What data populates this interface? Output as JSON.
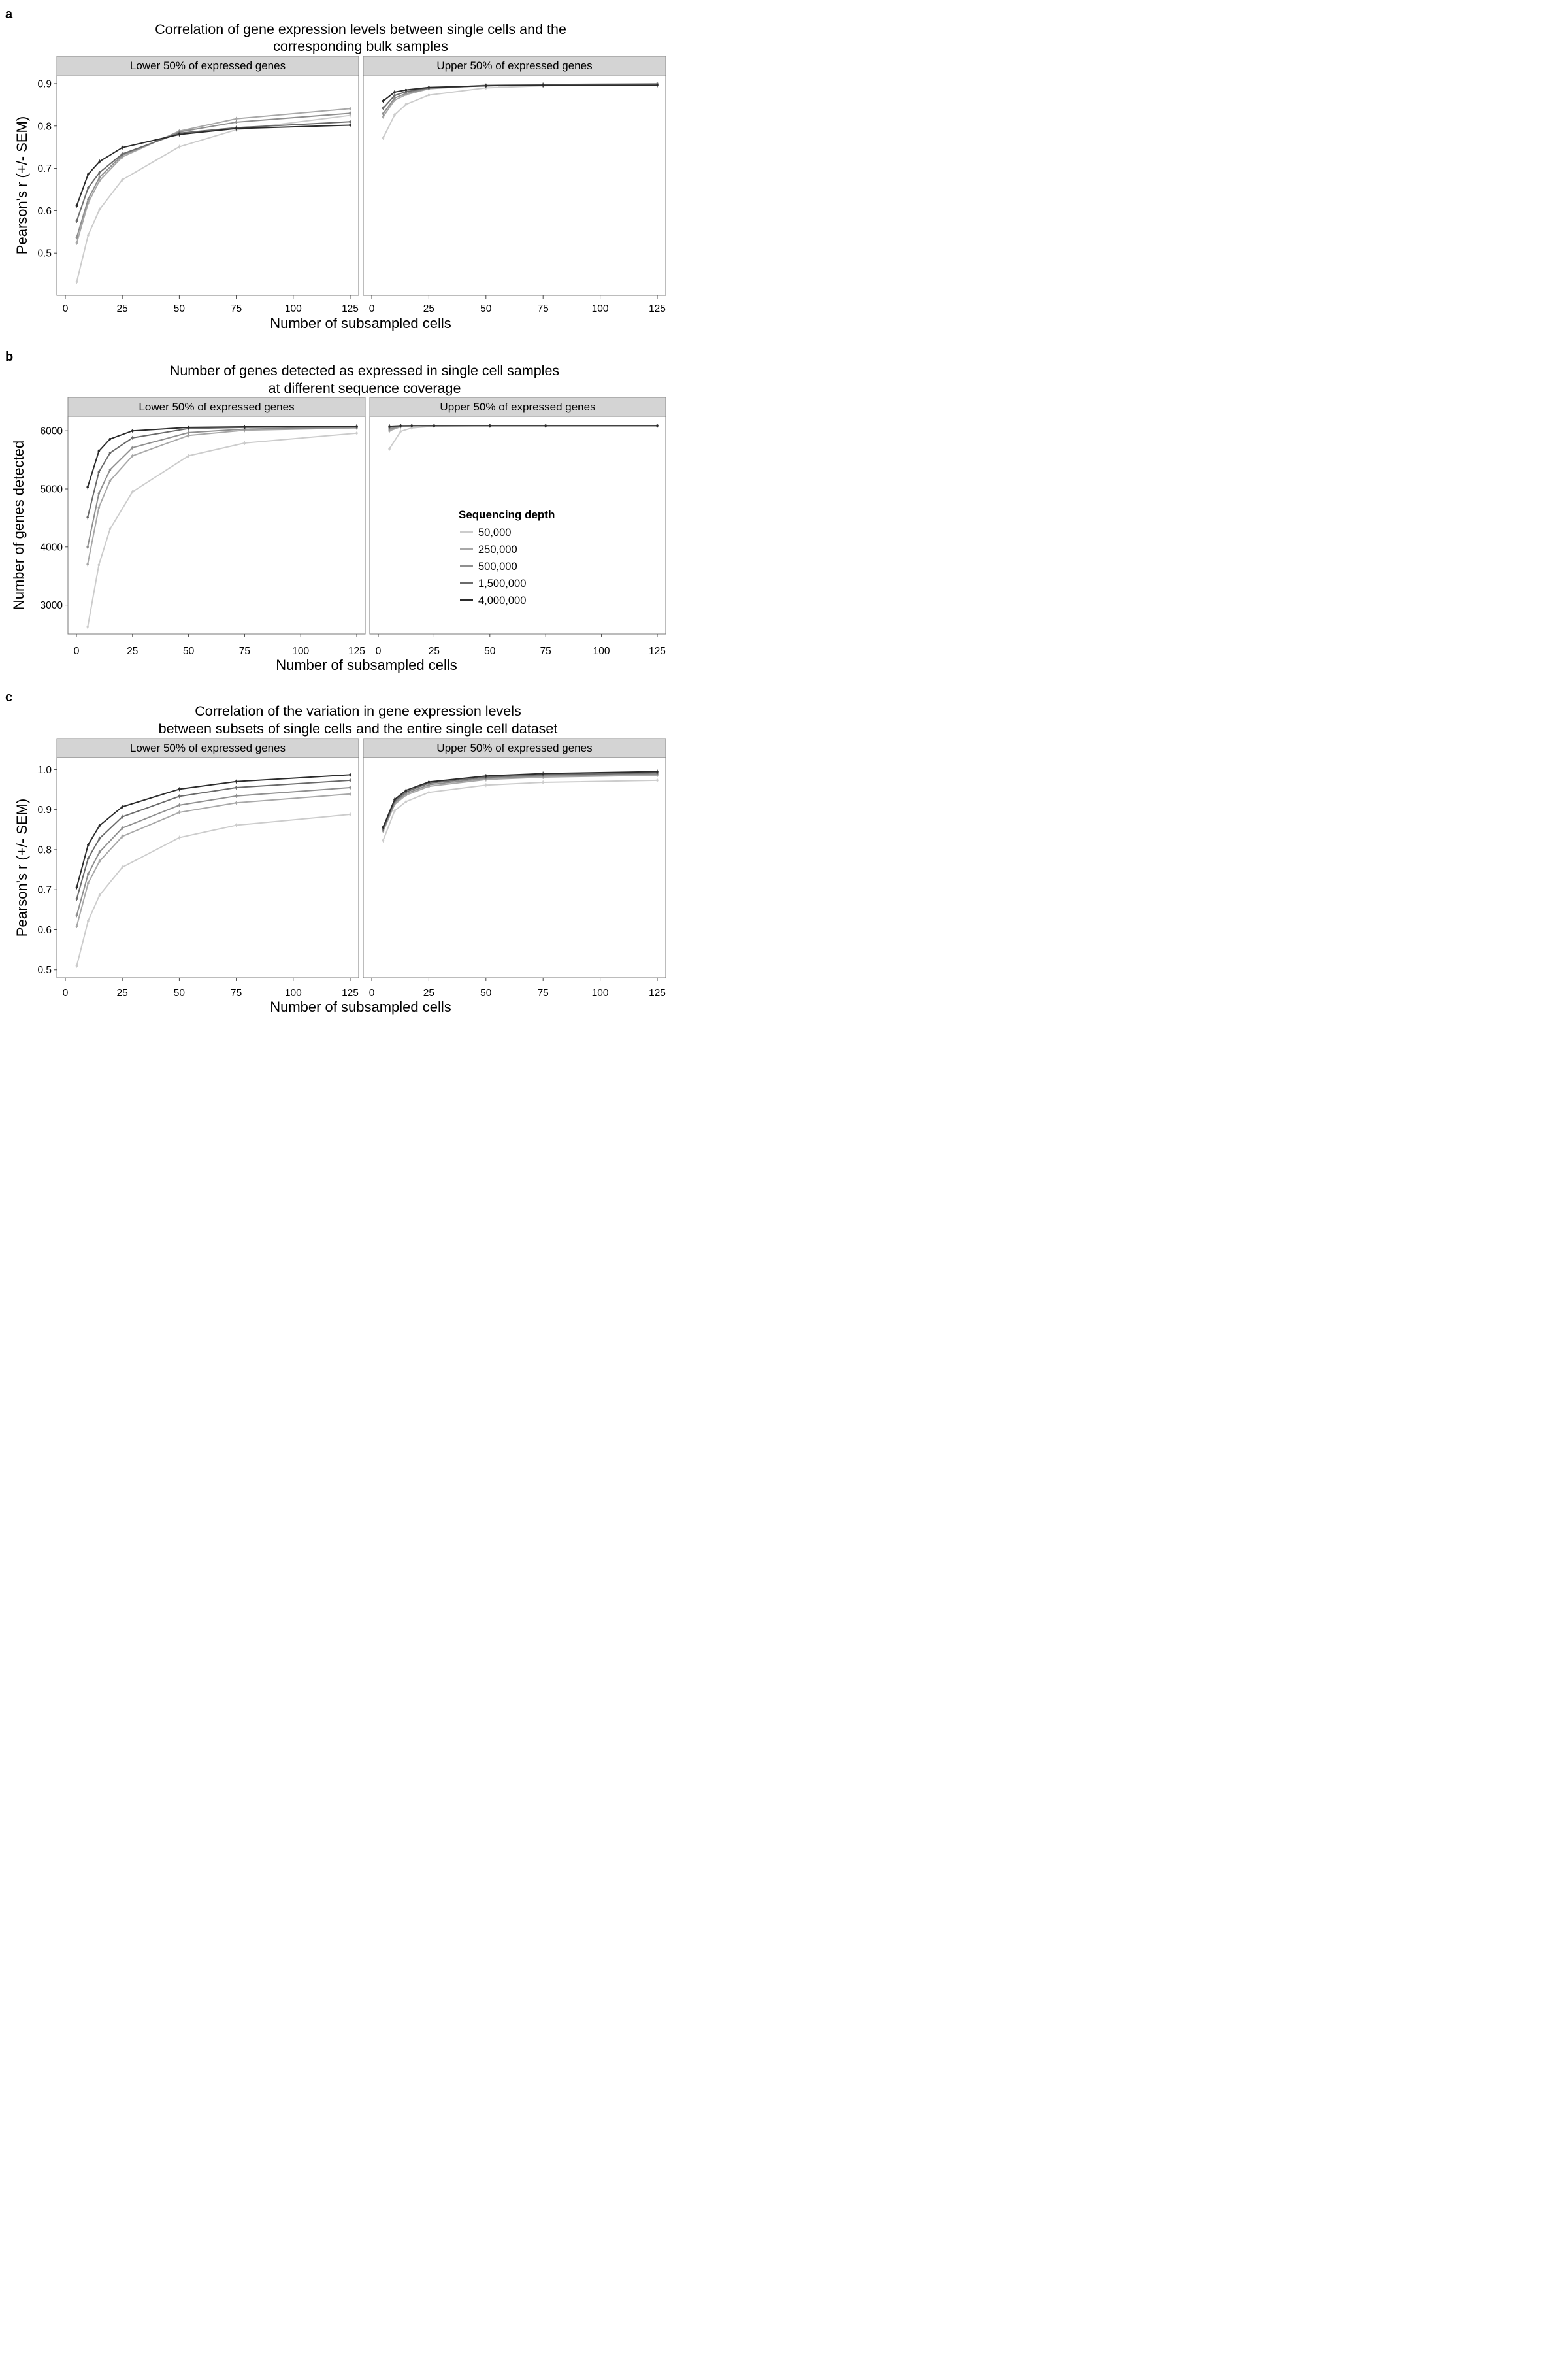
{
  "figure": {
    "panels": [
      {
        "letter": "a",
        "title_lines": [
          "Correlation of gene expression levels between single cells and the",
          "corresponding bulk samples"
        ],
        "ylabel": "Pearson's r (+/- SEM)",
        "xlabel": "Number of subsampled cells"
      },
      {
        "letter": "b",
        "title_lines": [
          "Number of genes detected as expressed in single cell samples",
          "at different sequence coverage"
        ],
        "ylabel": "Number of genes detected",
        "xlabel": "Number of subsampled cells"
      },
      {
        "letter": "c",
        "title_lines": [
          "Correlation of the variation in gene expression levels",
          "between subsets of single cells and the entire single cell dataset"
        ],
        "ylabel": "Pearson's r (+/- SEM)",
        "xlabel": "Number of subsampled cells"
      }
    ],
    "facets": [
      "Lower 50% of expressed genes",
      "Upper 50% of expressed genes"
    ],
    "legend": {
      "title": "Sequencing depth",
      "items": [
        "50,000",
        "250,000",
        "500,000",
        "1,500,000",
        "4,000,000"
      ]
    },
    "series_colors": [
      "#cccccc",
      "#a8a8a8",
      "#8f8f8f",
      "#6a6a6a",
      "#2b2b2b"
    ],
    "strip_color": "#d4d4d4"
  },
  "chart_data": [
    {
      "type": "line",
      "panel": "a",
      "facet": "Lower 50% of expressed genes",
      "x": [
        5,
        10,
        15,
        25,
        50,
        75,
        125
      ],
      "xlim": [
        0,
        125
      ],
      "ylim": [
        0.4,
        0.92
      ],
      "xticks": [
        0,
        25,
        50,
        75,
        100,
        125
      ],
      "yticks": [
        0.5,
        0.6,
        0.7,
        0.8,
        0.9
      ],
      "grid": false,
      "series": [
        {
          "name": "50,000",
          "values": [
            0.432,
            0.542,
            0.603,
            0.673,
            0.751,
            0.791,
            0.825
          ]
        },
        {
          "name": "250,000",
          "values": [
            0.524,
            0.618,
            0.671,
            0.727,
            0.788,
            0.817,
            0.841
          ]
        },
        {
          "name": "500,000",
          "values": [
            0.537,
            0.627,
            0.679,
            0.731,
            0.786,
            0.809,
            0.83
          ]
        },
        {
          "name": "1,500,000",
          "values": [
            0.576,
            0.654,
            0.69,
            0.734,
            0.783,
            0.796,
            0.81
          ]
        },
        {
          "name": "4,000,000",
          "values": [
            0.612,
            0.686,
            0.716,
            0.749,
            0.78,
            0.794,
            0.802
          ]
        }
      ]
    },
    {
      "type": "line",
      "panel": "a",
      "facet": "Upper 50% of expressed genes",
      "x": [
        5,
        10,
        15,
        25,
        50,
        75,
        125
      ],
      "xlim": [
        0,
        125
      ],
      "ylim": [
        0.4,
        0.92
      ],
      "xticks": [
        0,
        25,
        50,
        75,
        100,
        125
      ],
      "yticks": [
        0.5,
        0.6,
        0.7,
        0.8,
        0.9
      ],
      "grid": false,
      "series": [
        {
          "name": "50,000",
          "values": [
            0.772,
            0.826,
            0.851,
            0.873,
            0.89,
            0.895,
            0.899
          ]
        },
        {
          "name": "250,000",
          "values": [
            0.822,
            0.861,
            0.874,
            0.888,
            0.896,
            0.898,
            0.9
          ]
        },
        {
          "name": "500,000",
          "values": [
            0.829,
            0.866,
            0.877,
            0.889,
            0.896,
            0.898,
            0.899
          ]
        },
        {
          "name": "1,500,000",
          "values": [
            0.842,
            0.872,
            0.881,
            0.89,
            0.895,
            0.897,
            0.898
          ]
        },
        {
          "name": "4,000,000",
          "values": [
            0.859,
            0.88,
            0.885,
            0.891,
            0.895,
            0.896,
            0.896
          ]
        }
      ]
    },
    {
      "type": "line",
      "panel": "b",
      "facet": "Lower 50% of expressed genes",
      "x": [
        5,
        10,
        15,
        25,
        50,
        75,
        125
      ],
      "xlim": [
        0,
        125
      ],
      "ylim": [
        2500,
        6250
      ],
      "xticks": [
        0,
        25,
        50,
        75,
        100,
        125
      ],
      "yticks": [
        3000,
        4000,
        5000,
        6000
      ],
      "grid": false,
      "series": [
        {
          "name": "50,000",
          "values": [
            2620,
            3690,
            4310,
            4950,
            5570,
            5790,
            5960
          ]
        },
        {
          "name": "250,000",
          "values": [
            3700,
            4680,
            5140,
            5570,
            5920,
            6010,
            6050
          ]
        },
        {
          "name": "500,000",
          "values": [
            4000,
            4920,
            5330,
            5710,
            5970,
            6030,
            6060
          ]
        },
        {
          "name": "1,500,000",
          "values": [
            4510,
            5290,
            5620,
            5880,
            6040,
            6060,
            6070
          ]
        },
        {
          "name": "4,000,000",
          "values": [
            5030,
            5650,
            5860,
            6000,
            6060,
            6070,
            6080
          ]
        }
      ]
    },
    {
      "type": "line",
      "panel": "b",
      "facet": "Upper 50% of expressed genes",
      "x": [
        5,
        10,
        15,
        25,
        50,
        75,
        125
      ],
      "xlim": [
        0,
        125
      ],
      "ylim": [
        2500,
        6250
      ],
      "xticks": [
        0,
        25,
        50,
        75,
        100,
        125
      ],
      "yticks": [
        3000,
        4000,
        5000,
        6000
      ],
      "grid": false,
      "series": [
        {
          "name": "50,000",
          "values": [
            5690,
            5990,
            6050,
            6080,
            6090,
            6090,
            6090
          ]
        },
        {
          "name": "250,000",
          "values": [
            6000,
            6070,
            6085,
            6090,
            6090,
            6090,
            6090
          ]
        },
        {
          "name": "500,000",
          "values": [
            6030,
            6080,
            6088,
            6090,
            6090,
            6090,
            6090
          ]
        },
        {
          "name": "1,500,000",
          "values": [
            6060,
            6085,
            6090,
            6090,
            6090,
            6090,
            6090
          ]
        },
        {
          "name": "4,000,000",
          "values": [
            6080,
            6090,
            6090,
            6090,
            6090,
            6090,
            6090
          ]
        }
      ]
    },
    {
      "type": "line",
      "panel": "c",
      "facet": "Lower 50% of expressed genes",
      "x": [
        5,
        10,
        15,
        25,
        50,
        75,
        125
      ],
      "xlim": [
        0,
        125
      ],
      "ylim": [
        0.48,
        1.03
      ],
      "xticks": [
        0,
        25,
        50,
        75,
        100,
        125
      ],
      "yticks": [
        0.5,
        0.6,
        0.7,
        0.8,
        0.9,
        1.0
      ],
      "grid": false,
      "series": [
        {
          "name": "50,000",
          "values": [
            0.51,
            0.622,
            0.686,
            0.756,
            0.83,
            0.861,
            0.888
          ]
        },
        {
          "name": "250,000",
          "values": [
            0.609,
            0.716,
            0.771,
            0.833,
            0.893,
            0.917,
            0.939
          ]
        },
        {
          "name": "500,000",
          "values": [
            0.636,
            0.739,
            0.794,
            0.854,
            0.911,
            0.934,
            0.955
          ]
        },
        {
          "name": "1,500,000",
          "values": [
            0.677,
            0.778,
            0.828,
            0.882,
            0.933,
            0.955,
            0.973
          ]
        },
        {
          "name": "4,000,000",
          "values": [
            0.706,
            0.812,
            0.86,
            0.907,
            0.951,
            0.97,
            0.987
          ]
        }
      ]
    },
    {
      "type": "line",
      "panel": "c",
      "facet": "Upper 50% of expressed genes",
      "x": [
        5,
        10,
        15,
        25,
        50,
        75,
        125
      ],
      "xlim": [
        0,
        125
      ],
      "ylim": [
        0.48,
        1.03
      ],
      "xticks": [
        0,
        25,
        50,
        75,
        100,
        125
      ],
      "yticks": [
        0.5,
        0.6,
        0.7,
        0.8,
        0.9,
        1.0
      ],
      "grid": false,
      "series": [
        {
          "name": "50,000",
          "values": [
            0.823,
            0.897,
            0.92,
            0.943,
            0.961,
            0.968,
            0.973
          ]
        },
        {
          "name": "250,000",
          "values": [
            0.846,
            0.913,
            0.936,
            0.958,
            0.975,
            0.981,
            0.986
          ]
        },
        {
          "name": "500,000",
          "values": [
            0.849,
            0.917,
            0.94,
            0.962,
            0.978,
            0.984,
            0.989
          ]
        },
        {
          "name": "1,500,000",
          "values": [
            0.852,
            0.921,
            0.944,
            0.966,
            0.981,
            0.987,
            0.992
          ]
        },
        {
          "name": "4,000,000",
          "values": [
            0.856,
            0.925,
            0.948,
            0.969,
            0.984,
            0.99,
            0.995
          ]
        }
      ]
    }
  ]
}
